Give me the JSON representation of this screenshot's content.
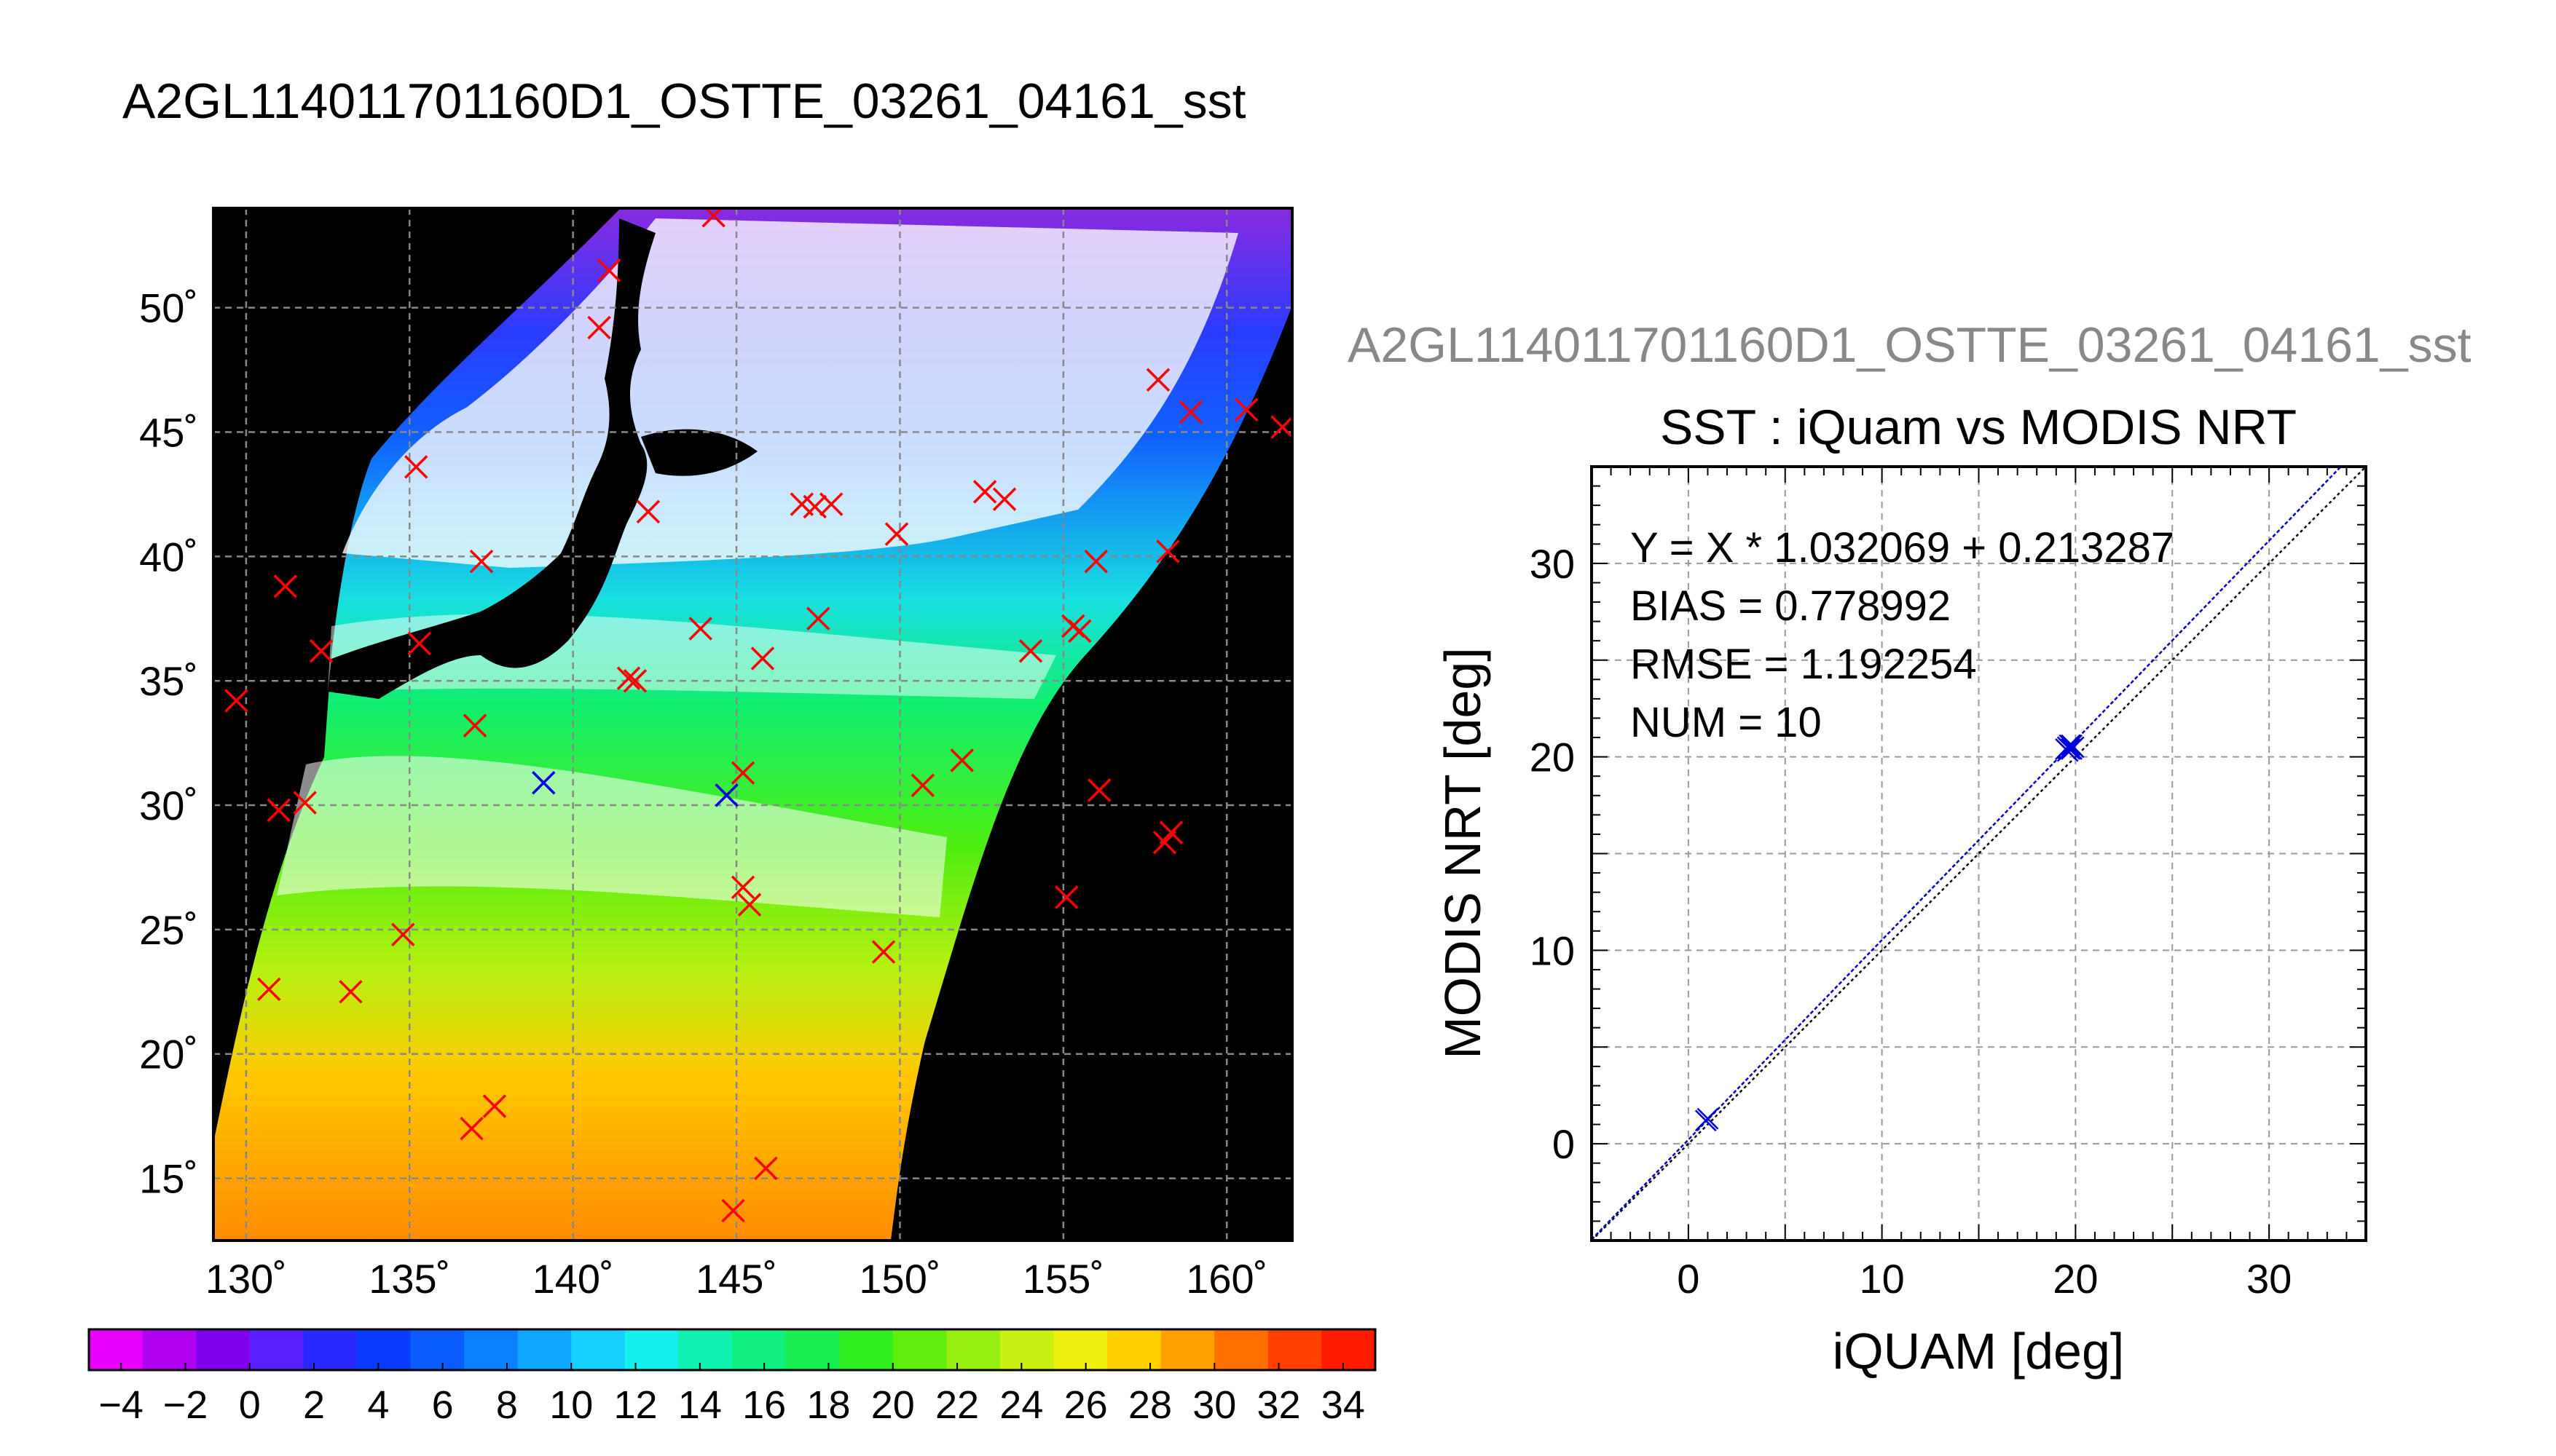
{
  "page_title": "A2GL114011701160D1_OSTTE_03261_04161_sst",
  "colors": {
    "match_marker": "#ff0000",
    "buoy_marker": "#0000dd",
    "land": "#000000",
    "cloud": "#ffffff",
    "fit_line": "#0000cc",
    "one_to_one_line": "#000000",
    "side_title": "#888888"
  },
  "colorbar": {
    "tick_labels": [
      "−4",
      "−2",
      "0",
      "2",
      "4",
      "6",
      "8",
      "10",
      "12",
      "14",
      "16",
      "18",
      "20",
      "22",
      "24",
      "26",
      "28",
      "30",
      "32",
      "34"
    ],
    "tick_values": [
      -4,
      -2,
      0,
      2,
      4,
      6,
      8,
      10,
      12,
      14,
      16,
      18,
      20,
      22,
      24,
      26,
      28,
      30,
      32,
      34
    ],
    "range": [
      -5,
      35
    ],
    "colors": [
      "#e600ff",
      "#b000f0",
      "#8000ee",
      "#5a20ff",
      "#2a2aff",
      "#0a3cff",
      "#0a5cff",
      "#0a80ff",
      "#10a8ff",
      "#18d0ff",
      "#14f0ee",
      "#10f0b0",
      "#10f080",
      "#18ee50",
      "#30ee20",
      "#60ee10",
      "#98ee10",
      "#c8f010",
      "#f0f010",
      "#ffd000",
      "#ffa000",
      "#ff7000",
      "#ff4000",
      "#ff1a00"
    ]
  },
  "chart_data": [
    {
      "type": "map",
      "xlim": [
        129,
        162
      ],
      "ylim": [
        12.5,
        54
      ],
      "x_ticks": [
        130,
        135,
        140,
        145,
        150,
        155,
        160
      ],
      "y_ticks": [
        15,
        20,
        25,
        30,
        35,
        40,
        45,
        50
      ],
      "x_tick_labels": [
        "130˚",
        "135˚",
        "140˚",
        "145˚",
        "150˚",
        "155˚",
        "160˚"
      ],
      "y_tick_labels": [
        "15˚",
        "20˚",
        "25˚",
        "30˚",
        "35˚",
        "40˚",
        "45˚",
        "50˚"
      ],
      "grid": true,
      "match_points": [
        [
          129.7,
          34.2
        ],
        [
          131.2,
          38.8
        ],
        [
          131.0,
          29.8
        ],
        [
          131.8,
          30.1
        ],
        [
          132.3,
          36.2
        ],
        [
          130.7,
          22.6
        ],
        [
          133.2,
          22.5
        ],
        [
          134.8,
          24.8
        ],
        [
          135.3,
          36.5
        ],
        [
          135.2,
          43.6
        ],
        [
          137.0,
          33.2
        ],
        [
          137.2,
          39.8
        ],
        [
          136.9,
          17.0
        ],
        [
          137.6,
          17.9
        ],
        [
          140.8,
          49.2
        ],
        [
          141.1,
          51.5
        ],
        [
          141.7,
          35.1
        ],
        [
          141.9,
          35.0
        ],
        [
          142.3,
          41.8
        ],
        [
          143.9,
          37.1
        ],
        [
          144.3,
          53.7
        ],
        [
          145.2,
          31.3
        ],
        [
          145.2,
          26.7
        ],
        [
          145.4,
          26.0
        ],
        [
          145.9,
          15.4
        ],
        [
          144.9,
          13.7
        ],
        [
          145.8,
          35.9
        ],
        [
          147.0,
          42.1
        ],
        [
          147.4,
          42.0
        ],
        [
          147.9,
          42.1
        ],
        [
          147.5,
          37.5
        ],
        [
          149.5,
          24.1
        ],
        [
          149.9,
          40.9
        ],
        [
          150.7,
          30.8
        ],
        [
          151.9,
          31.8
        ],
        [
          152.6,
          42.6
        ],
        [
          153.2,
          42.3
        ],
        [
          154.0,
          36.2
        ],
        [
          155.3,
          37.2
        ],
        [
          155.5,
          37.0
        ],
        [
          155.1,
          26.3
        ],
        [
          156.1,
          30.6
        ],
        [
          156.0,
          39.8
        ],
        [
          157.9,
          47.1
        ],
        [
          158.2,
          40.2
        ],
        [
          158.1,
          28.5
        ],
        [
          158.3,
          28.9
        ],
        [
          158.9,
          45.8
        ],
        [
          160.6,
          45.9
        ],
        [
          161.7,
          45.2
        ]
      ],
      "buoy_points": [
        [
          139.1,
          30.9
        ],
        [
          144.7,
          30.4
        ]
      ]
    },
    {
      "type": "scatter",
      "title": "SST : iQuam vs MODIS NRT",
      "xlabel": "iQUAM [deg]",
      "ylabel": "MODIS NRT [deg]",
      "xlim": [
        -5,
        35
      ],
      "ylim": [
        -5,
        35
      ],
      "x_ticks": [
        0,
        10,
        20,
        30
      ],
      "y_ticks": [
        0,
        10,
        20,
        30
      ],
      "x_tick_labels": [
        "0",
        "10",
        "20",
        "30"
      ],
      "y_tick_labels": [
        "0",
        "10",
        "20",
        "30"
      ],
      "grid": true,
      "fit_slope": 1.032069,
      "fit_intercept": 0.213287,
      "stats": {
        "fit": "Y = X * 1.032069 + 0.213287",
        "bias": "BIAS = 0.778992",
        "rmse": "RMSE = 1.192254",
        "num": "NUM = 10"
      },
      "points": [
        [
          0.9,
          1.2
        ],
        [
          1.0,
          1.3
        ],
        [
          19.5,
          20.4
        ],
        [
          19.6,
          20.5
        ],
        [
          19.8,
          20.4
        ],
        [
          19.7,
          20.6
        ],
        [
          19.9,
          20.5
        ],
        [
          19.6,
          20.3
        ],
        [
          19.8,
          20.6
        ],
        [
          19.7,
          20.4
        ]
      ]
    }
  ]
}
